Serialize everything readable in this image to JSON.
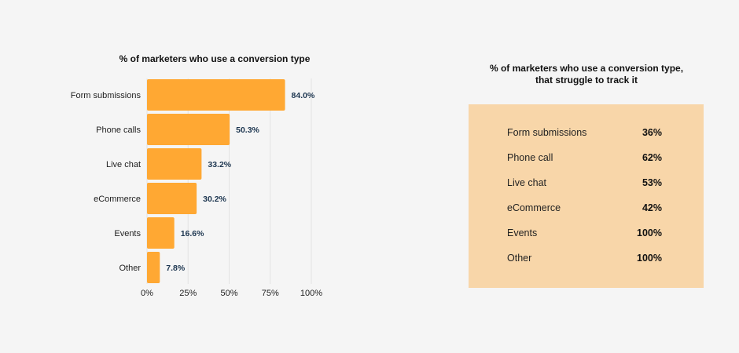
{
  "chart_data": {
    "type": "bar",
    "orientation": "horizontal",
    "title": "% of marketers who use a conversion type",
    "categories": [
      "Form submissions",
      "Phone calls",
      "Live chat",
      "eCommerce",
      "Events",
      "Other"
    ],
    "values": [
      84.0,
      50.3,
      33.2,
      30.2,
      16.6,
      7.8
    ],
    "value_labels": [
      "84.0%",
      "50.3%",
      "33.2%",
      "30.2%",
      "16.6%",
      "7.8%"
    ],
    "xlim": [
      0,
      100
    ],
    "x_ticks": [
      0,
      25,
      50,
      75,
      100
    ],
    "x_tick_labels": [
      "0%",
      "25%",
      "50%",
      "75%",
      "100%"
    ],
    "xlabel": "",
    "ylabel": "",
    "grid": true,
    "bar_color": "#ffa833"
  },
  "table": {
    "title_line1": "% of marketers who use a conversion type,",
    "title_line2": "that struggle to track it",
    "background": "#f8d6a9",
    "rows": [
      {
        "label": "Form submissions",
        "value": "36%"
      },
      {
        "label": "Phone call",
        "value": "62%"
      },
      {
        "label": "Live chat",
        "value": "53%"
      },
      {
        "label": "eCommerce",
        "value": "42%"
      },
      {
        "label": "Events",
        "value": "100%"
      },
      {
        "label": "Other",
        "value": "100%"
      }
    ]
  }
}
